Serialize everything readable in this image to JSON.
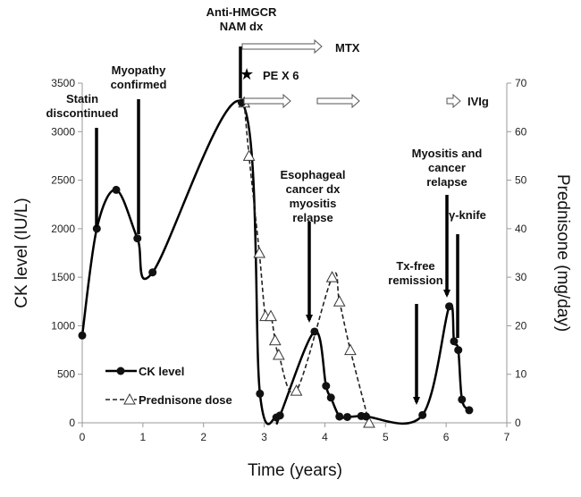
{
  "chart_data": {
    "type": "line",
    "title": "",
    "xlabel": "Time (years)",
    "ylabel": "CK level (IU/L)",
    "y2label": "Prednisone (mg/day)",
    "xlim": [
      0,
      7
    ],
    "ylim": [
      0,
      3500
    ],
    "y2lim": [
      0,
      70
    ],
    "xticks": [
      "0",
      "1",
      "2",
      "3",
      "4",
      "5",
      "6",
      "7"
    ],
    "yticks": [
      "0",
      "500",
      "1000",
      "1500",
      "2000",
      "2500",
      "3000",
      "3500"
    ],
    "y2ticks": [
      "0",
      "10",
      "20",
      "30",
      "40",
      "50",
      "60",
      "70"
    ],
    "legend_position": "bottom-left",
    "series": [
      {
        "name": "CK level",
        "axis": "left",
        "style": "solid-circle",
        "x": [
          0,
          0.24,
          0.56,
          0.91,
          1.16,
          2.63,
          2.93,
          3.2,
          3.26,
          3.83,
          4.02,
          4.1,
          4.24,
          4.37,
          4.6,
          4.68,
          5.61,
          6.05,
          6.13,
          6.2,
          6.26,
          6.38
        ],
        "y": [
          900,
          2000,
          2400,
          1900,
          1550,
          3300,
          300,
          55,
          75,
          940,
          380,
          260,
          65,
          60,
          70,
          65,
          80,
          1200,
          840,
          750,
          240,
          130
        ]
      },
      {
        "name": "Prednisone dose",
        "axis": "right",
        "style": "dashed-triangle",
        "x": [
          2.67,
          2.75,
          2.92,
          3.02,
          3.11,
          3.18,
          3.24,
          3.53,
          4.12,
          4.24,
          4.42,
          4.73
        ],
        "y": [
          66,
          55,
          35,
          22,
          22,
          17,
          14,
          6.6,
          30,
          25,
          15,
          0
        ]
      }
    ],
    "annotations": [
      {
        "text": [
          "Statin",
          "discontinued"
        ]
      },
      {
        "text": [
          "Myopathy",
          "confirmed"
        ]
      },
      {
        "text": [
          "Anti-HMGCR",
          "NAM dx"
        ]
      },
      {
        "text": [
          "MTX"
        ]
      },
      {
        "text": [
          "PE X 6"
        ]
      },
      {
        "text": [
          "IVIg"
        ]
      },
      {
        "text": [
          "Esophageal",
          "cancer dx",
          "myositis",
          "relapse"
        ]
      },
      {
        "text": [
          "Tx-free",
          "remission"
        ]
      },
      {
        "text": [
          "Myositis and",
          "cancer",
          "relapse"
        ]
      },
      {
        "text": [
          "γ-knife"
        ]
      }
    ]
  }
}
